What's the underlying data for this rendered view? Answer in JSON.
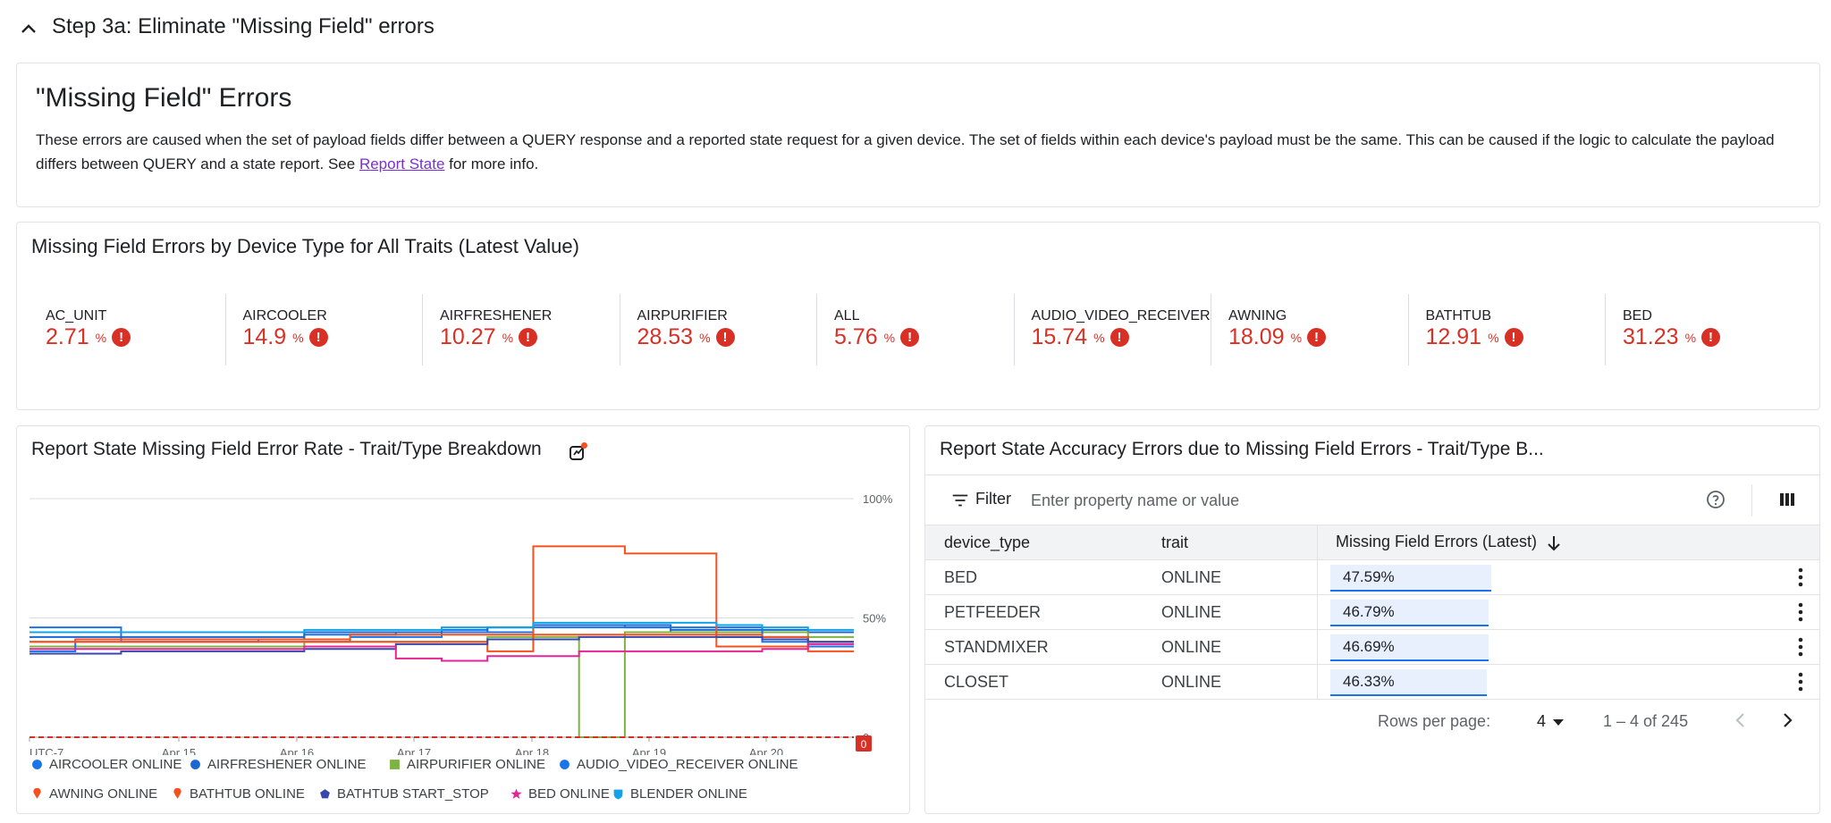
{
  "step": {
    "title": "Step 3a: Eliminate \"Missing Field\" errors"
  },
  "info": {
    "title": "\"Missing Field\" Errors",
    "body_pre": "These errors are caused when the set of payload fields differ between a QUERY response and a reported state request for a given device.  The set of fields within each device's payload must be the same. This can be caused if the logic to calculate the payload differs between QUERY and a state report. See ",
    "link_text": "Report State",
    "body_post": " for more info."
  },
  "scorecards": {
    "title": "Missing Field Errors by Device Type for All Traits (Latest Value)",
    "pct_symbol": "%",
    "items": [
      {
        "label": "AC_UNIT",
        "value": "2.71"
      },
      {
        "label": "AIRCOOLER",
        "value": "14.9"
      },
      {
        "label": "AIRFRESHENER",
        "value": "10.27"
      },
      {
        "label": "AIRPURIFIER",
        "value": "28.53"
      },
      {
        "label": "ALL",
        "value": "5.76"
      },
      {
        "label": "AUDIO_VIDEO_RECEIVER",
        "value": "15.74"
      },
      {
        "label": "AWNING",
        "value": "18.09"
      },
      {
        "label": "BATHTUB",
        "value": "12.91"
      },
      {
        "label": "BED",
        "value": "31.23"
      }
    ]
  },
  "chart": {
    "title": "Report State Missing Field Error Rate - Trait/Type Breakdown",
    "explore_icon": "explore-chart-icon",
    "threshold_badge": "0",
    "legend": [
      {
        "label": "AIRCOOLER ONLINE",
        "color": "#1a73e8",
        "shape": "circle"
      },
      {
        "label": "AIRFRESHENER ONLINE",
        "color": "#1967d2",
        "shape": "circle"
      },
      {
        "label": "AIRPURIFIER ONLINE",
        "color": "#7cb342",
        "shape": "square"
      },
      {
        "label": "AUDIO_VIDEO_RECEIVER ONLINE",
        "color": "#1a73e8",
        "shape": "circle"
      },
      {
        "label": "AWNING ONLINE",
        "color": "#f4511e",
        "shape": "pin"
      },
      {
        "label": "BATHTUB ONLINE",
        "color": "#f4511e",
        "shape": "pin"
      },
      {
        "label": "BATHTUB START_STOP",
        "color": "#3949ab",
        "shape": "pentagon"
      },
      {
        "label": "BED ONLINE",
        "color": "#e52592",
        "shape": "star"
      },
      {
        "label": "BLENDER ONLINE",
        "color": "#12a4e8",
        "shape": "shield"
      }
    ]
  },
  "chart_data": {
    "type": "line",
    "title": "Report State Missing Field Error Rate - Trait/Type Breakdown",
    "x_tick_labels": [
      "UTC-7",
      "Apr 15",
      "Apr 16",
      "Apr 17",
      "Apr 18",
      "Apr 19",
      "Apr 20"
    ],
    "y_tick_labels": [
      "100%",
      "50%",
      "0"
    ],
    "ylim": [
      0,
      100
    ],
    "grid": true,
    "legend_position": "bottom",
    "series": [
      {
        "name": "AIRCOOLER ONLINE",
        "color": "#1a73e8",
        "values": [
          46,
          46,
          40,
          40,
          40,
          41,
          43,
          43,
          44,
          45,
          46,
          47,
          47,
          46,
          44,
          42,
          40,
          38,
          38
        ]
      },
      {
        "name": "AIRFRESHENER ONLINE",
        "color": "#1967d2",
        "values": [
          42,
          42,
          42,
          42,
          42,
          42,
          44,
          44,
          44,
          44,
          46,
          47,
          47,
          47,
          45,
          45,
          45,
          44,
          44
        ]
      },
      {
        "name": "AIRPURIFIER ONLINE",
        "color": "#7cb342",
        "values": [
          38,
          38,
          38,
          38,
          38,
          38,
          40,
          40,
          40,
          40,
          42,
          42,
          0,
          44,
          44,
          44,
          44,
          42,
          42
        ]
      },
      {
        "name": "AUDIO_VIDEO_RECEIVER ONLINE",
        "color": "#1a73e8",
        "values": [
          36,
          40,
          40,
          40,
          40,
          40,
          40,
          42,
          42,
          44,
          44,
          46,
          46,
          46,
          46,
          46,
          42,
          40,
          40
        ]
      },
      {
        "name": "AWNING ONLINE",
        "color": "#f4511e",
        "values": [
          40,
          40,
          40,
          40,
          40,
          40,
          40,
          40,
          40,
          40,
          36,
          80,
          80,
          77,
          77,
          38,
          38,
          36,
          36
        ]
      },
      {
        "name": "BATHTUB ONLINE",
        "color": "#f4511e",
        "values": [
          40,
          41,
          41,
          41,
          41,
          41,
          41,
          43,
          43,
          43,
          43,
          43,
          43,
          43,
          43,
          43,
          42,
          40,
          40
        ]
      },
      {
        "name": "BATHTUB START_STOP",
        "color": "#3949ab",
        "values": [
          35,
          35,
          36,
          36,
          36,
          36,
          37,
          37,
          39,
          39,
          41,
          41,
          42,
          42,
          42,
          42,
          41,
          40,
          40
        ]
      },
      {
        "name": "BED ONLINE",
        "color": "#e52592",
        "values": [
          37,
          37,
          37,
          37,
          37,
          37,
          38,
          38,
          33,
          32,
          34,
          34,
          36,
          36,
          36,
          36,
          37,
          39,
          39
        ]
      },
      {
        "name": "BLENDER ONLINE",
        "color": "#12a4e8",
        "values": [
          44,
          44,
          44,
          44,
          44,
          44,
          45,
          45,
          45,
          46,
          46,
          48,
          48,
          48,
          48,
          47,
          46,
          45,
          45
        ]
      }
    ]
  },
  "table": {
    "title": "Report State Accuracy Errors due to Missing Field Errors - Trait/Type B...",
    "filter_label": "Filter",
    "filter_placeholder": "Enter property name or value",
    "columns": [
      "device_type",
      "trait",
      "Missing Field Errors (Latest)"
    ],
    "rows": [
      {
        "device_type": "BED",
        "trait": "ONLINE",
        "value": "47.59%",
        "fraction": 0.4759
      },
      {
        "device_type": "PETFEEDER",
        "trait": "ONLINE",
        "value": "46.79%",
        "fraction": 0.4679
      },
      {
        "device_type": "STANDMIXER",
        "trait": "ONLINE",
        "value": "46.69%",
        "fraction": 0.4669
      },
      {
        "device_type": "CLOSET",
        "trait": "ONLINE",
        "value": "46.33%",
        "fraction": 0.4633
      }
    ],
    "rows_per_page_label": "Rows per page:",
    "rows_per_page_value": "4",
    "range_label": "1 – 4 of 245"
  }
}
